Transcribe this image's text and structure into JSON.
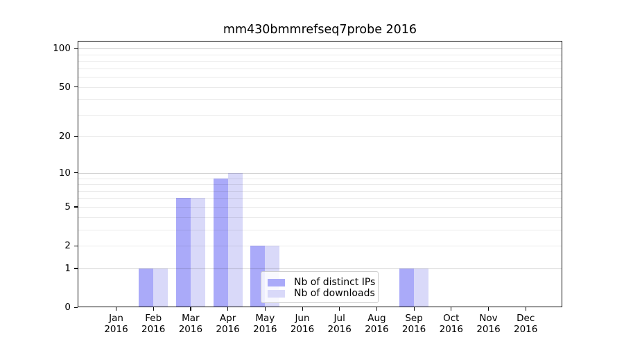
{
  "title": "mm430bmmrefseq7probe 2016",
  "legend": {
    "items": [
      {
        "label": "Nb of distinct IPs",
        "color": "#aaaaf9"
      },
      {
        "label": "Nb of downloads",
        "color": "#d9d9f9"
      }
    ]
  },
  "chart_data": {
    "type": "bar",
    "title": "mm430bmmrefseq7probe 2016",
    "xlabel": "",
    "ylabel": "",
    "x_year": "2016",
    "categories": [
      "Jan",
      "Feb",
      "Mar",
      "Apr",
      "May",
      "Jun",
      "Jul",
      "Aug",
      "Sep",
      "Oct",
      "Nov",
      "Dec"
    ],
    "series": [
      {
        "name": "Nb of distinct IPs",
        "color": "#aaaaf9",
        "values": [
          0,
          1,
          6,
          9,
          2,
          0,
          0,
          0,
          1,
          0,
          0,
          0
        ]
      },
      {
        "name": "Nb of downloads",
        "color": "#d9d9f9",
        "values": [
          0,
          1,
          6,
          10,
          2,
          0,
          0,
          0,
          1,
          0,
          0,
          0
        ]
      }
    ],
    "scale": "log1p",
    "ylim": [
      0,
      115
    ],
    "y_ticks": [
      100,
      50,
      20,
      10,
      5,
      2,
      1,
      0
    ],
    "grid_major": [
      1,
      10,
      100
    ],
    "grid_minor": [
      2,
      3,
      4,
      5,
      6,
      7,
      8,
      9,
      20,
      30,
      40,
      50,
      60,
      70,
      80,
      90
    ],
    "grid": "horizontal gridlines drawn on top of bars",
    "legend_position": "inside axes, lower center"
  }
}
